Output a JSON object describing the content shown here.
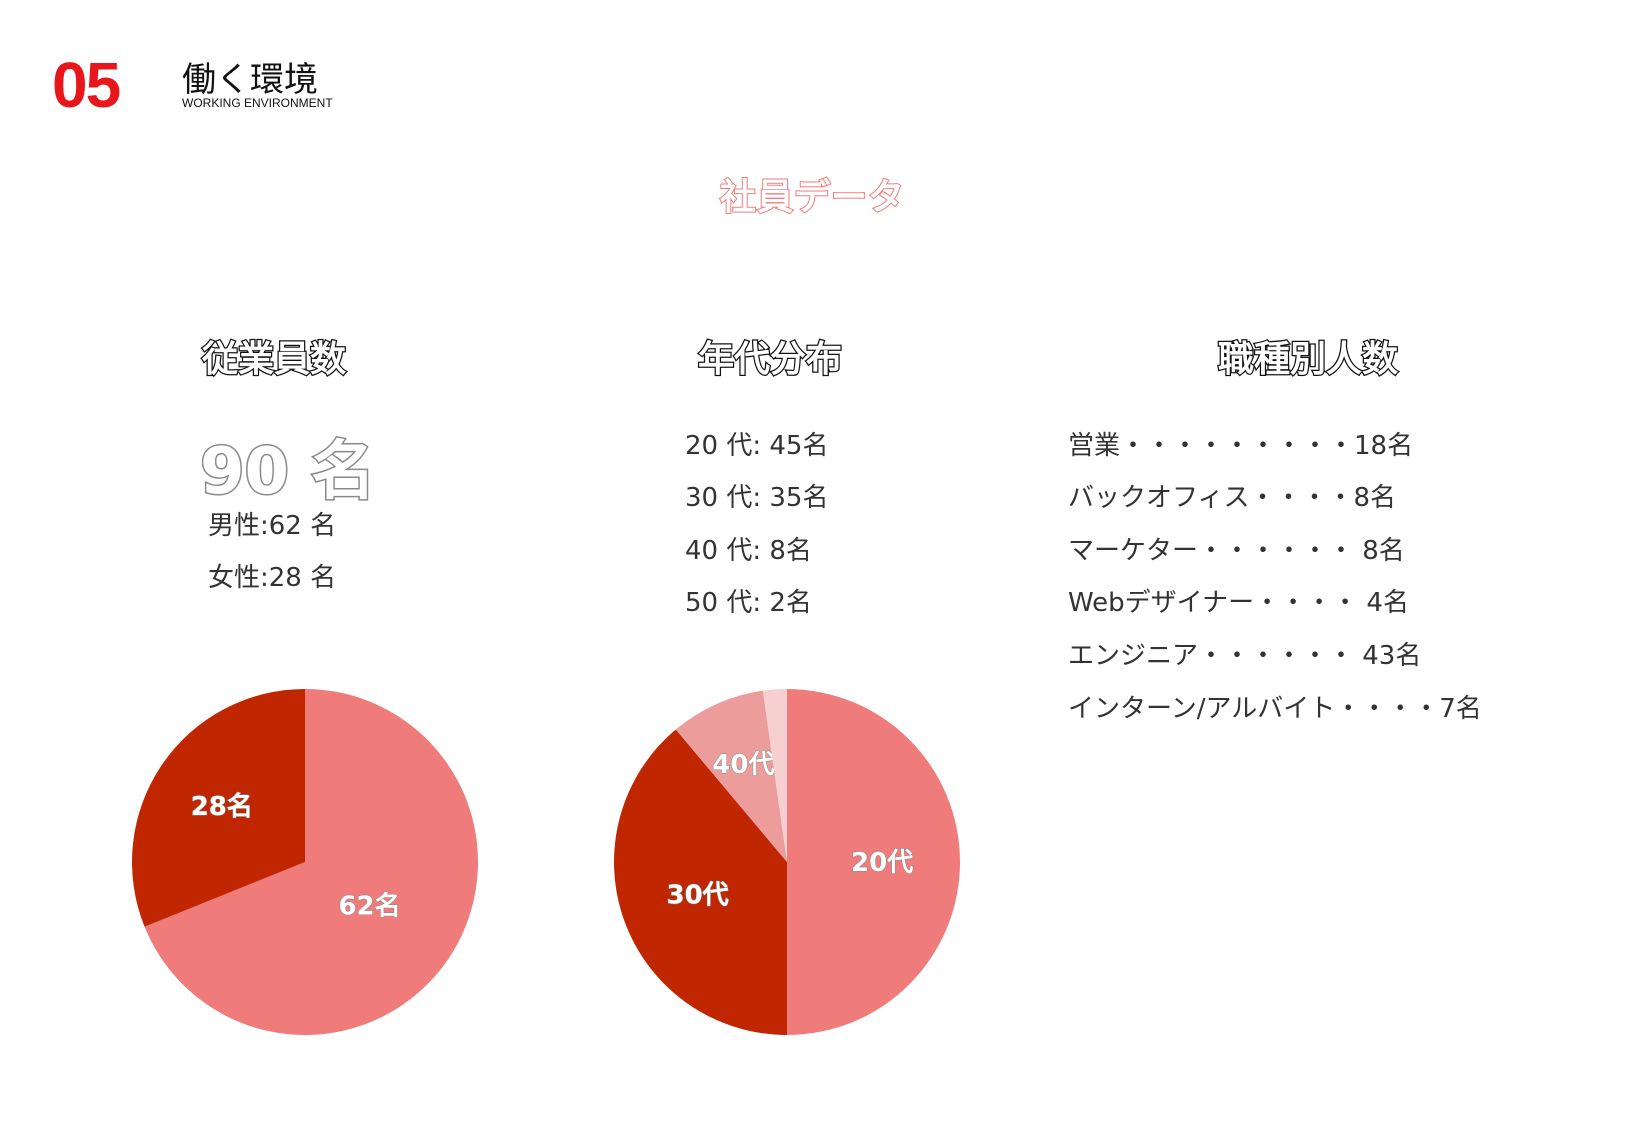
{
  "section": {
    "number": "05",
    "title": "働く環境",
    "subtitle": "WORKING ENVIRONMENT"
  },
  "page_title": "社員データ",
  "employees": {
    "heading": "従業員数",
    "total": "90 名",
    "male": "男性:62 名",
    "female": "女性:28 名"
  },
  "ages": {
    "heading": "年代分布",
    "lines": [
      "20 代: 45名",
      "30 代: 35名",
      "40 代: 8名",
      "50 代: 2名"
    ]
  },
  "jobs": {
    "heading": "職種別人数",
    "lines": [
      "営業・・・・・・・・・18名",
      "バックオフィス・・・・8名",
      "マーケター・・・・・・ 8名",
      "Webデザイナー・・・・ 4名",
      "エンジニア・・・・・・ 43名",
      "インターン/アルバイト・・・・7名"
    ]
  },
  "colors": {
    "accent": "#e8161b",
    "pink": "#ef7b7a",
    "dark_red": "#c02700",
    "light_pink": "#ec9c9b",
    "pale_pink": "#f6cfcf"
  },
  "chart_data": [
    {
      "type": "pie",
      "categories": [
        "男性",
        "女性"
      ],
      "values": [
        62,
        28
      ],
      "labels": [
        "62名",
        "28名"
      ],
      "colors": [
        "#ef7b7a",
        "#c02700"
      ]
    },
    {
      "type": "pie",
      "categories": [
        "20代",
        "30代",
        "40代",
        "50代"
      ],
      "values": [
        45,
        35,
        8,
        2
      ],
      "labels": [
        "20代",
        "30代",
        "40代",
        ""
      ],
      "colors": [
        "#ef7b7a",
        "#c02700",
        "#ec9c9b",
        "#f6cfcf"
      ]
    }
  ]
}
